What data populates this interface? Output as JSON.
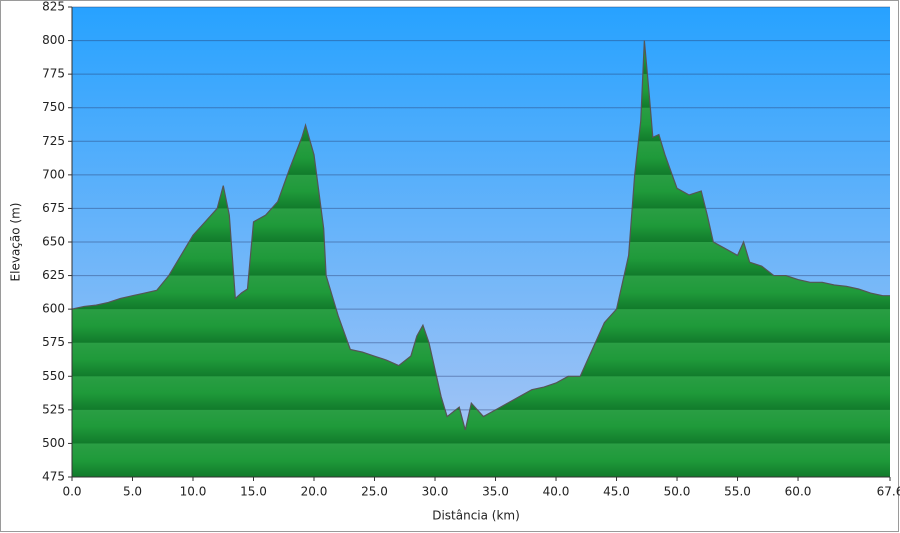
{
  "chart_data": {
    "type": "area",
    "x_label": "Distância   (km)",
    "y_label": "Elevação (m)",
    "x": [
      0,
      1,
      2,
      3,
      4,
      5,
      6,
      7,
      8,
      9,
      10,
      11,
      12,
      12.5,
      13,
      13.5,
      14,
      14.5,
      15,
      16,
      17,
      18,
      19,
      19.3,
      20,
      20.8,
      21,
      22,
      23,
      24,
      25,
      26,
      27,
      28,
      28.5,
      29,
      29.5,
      30,
      30.5,
      31,
      32,
      32.5,
      33,
      34,
      35,
      36,
      37,
      38,
      39,
      40,
      41,
      42,
      43,
      44,
      45,
      46,
      46.5,
      47,
      47.3,
      47.7,
      48,
      48.5,
      49,
      50,
      51,
      52,
      52.5,
      53,
      54,
      55,
      55.5,
      56,
      57,
      58,
      59,
      60,
      61,
      62,
      63,
      64,
      65,
      66,
      67,
      67.6
    ],
    "values": [
      600,
      602,
      603,
      605,
      608,
      610,
      612,
      614,
      625,
      640,
      655,
      665,
      675,
      692,
      670,
      608,
      612,
      615,
      665,
      670,
      680,
      705,
      728,
      737,
      715,
      660,
      625,
      595,
      570,
      568,
      565,
      562,
      558,
      565,
      580,
      588,
      575,
      555,
      535,
      520,
      527,
      510,
      530,
      520,
      525,
      530,
      535,
      540,
      542,
      545,
      550,
      550,
      570,
      590,
      600,
      640,
      700,
      740,
      800,
      760,
      728,
      730,
      715,
      690,
      685,
      688,
      670,
      650,
      645,
      640,
      650,
      635,
      632,
      625,
      625,
      622,
      620,
      620,
      618,
      617,
      615,
      612,
      610,
      610
    ],
    "color": "#1f9a3a",
    "xlim": [
      0,
      67.6
    ],
    "xticks": [
      {
        "value": 0,
        "label": "0.0"
      },
      {
        "value": 5,
        "label": "5.0"
      },
      {
        "value": 10,
        "label": "10.0"
      },
      {
        "value": 15,
        "label": "15.0"
      },
      {
        "value": 20,
        "label": "20.0"
      },
      {
        "value": 25,
        "label": "25.0"
      },
      {
        "value": 30,
        "label": "30.0"
      },
      {
        "value": 35,
        "label": "35.0"
      },
      {
        "value": 40,
        "label": "40.0"
      },
      {
        "value": 45,
        "label": "45.0"
      },
      {
        "value": 50,
        "label": "50.0"
      },
      {
        "value": 55,
        "label": "55.0"
      },
      {
        "value": 60,
        "label": "60.0"
      },
      67.6
    ],
    "ylim": [
      475,
      825
    ],
    "yticks": [
      475,
      500,
      525,
      550,
      575,
      600,
      625,
      650,
      675,
      700,
      725,
      750,
      775,
      800,
      825
    ],
    "grid": true
  }
}
